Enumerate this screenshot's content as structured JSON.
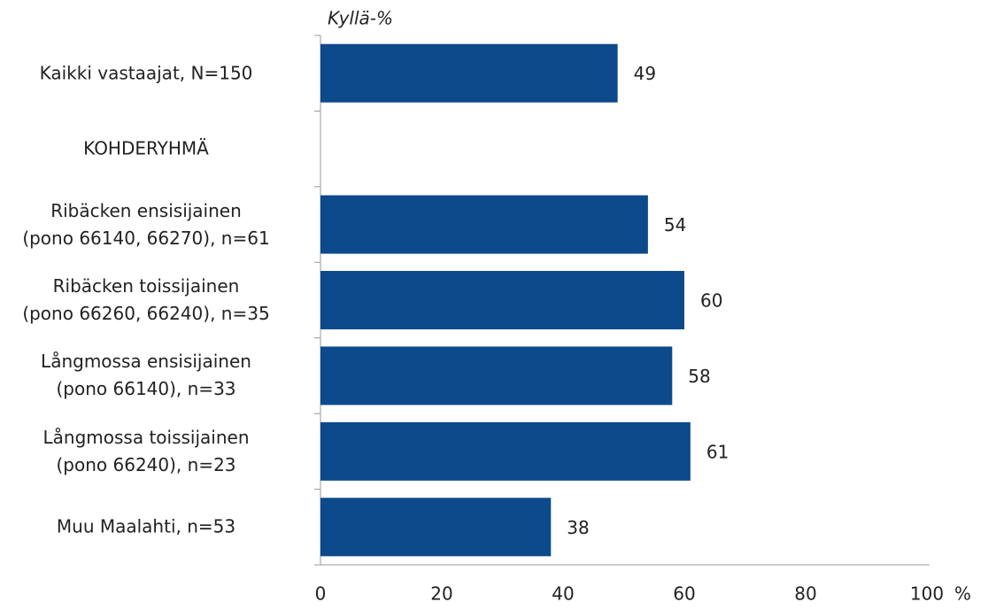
{
  "chart_data": {
    "type": "barh",
    "y_label": "Kyllä-%",
    "x_unit": "%",
    "categories": [
      "Kaikki vastaajat, N=150",
      "KOHDERYHMÄ",
      "Ribäcken ensisijainen\n(pono 66140, 66270), n=61",
      "Ribäcken toissijainen\n(pono 66260, 66240), n=35",
      "Långmossa ensisijainen\n(pono 66140), n=33",
      "Långmossa toissijainen\n(pono 66240), n=23",
      "Muu Maalahti, n=53"
    ],
    "values": [
      49,
      null,
      54,
      60,
      58,
      61,
      38
    ],
    "color": "#0d4a8c",
    "xlim": [
      0,
      100
    ],
    "xticks": [
      0,
      20,
      40,
      60,
      80,
      100
    ]
  }
}
